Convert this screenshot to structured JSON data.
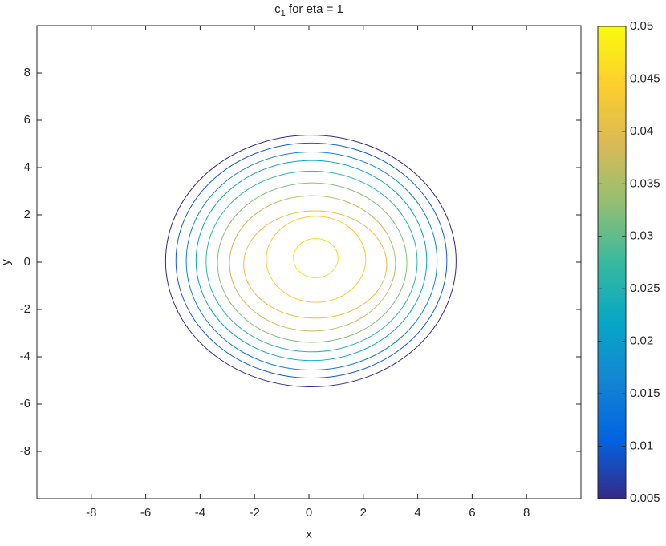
{
  "chart_data": {
    "type": "contour",
    "title": "c",
    "title_subscript": "1",
    "title_rest": " for eta = 1",
    "x_label": "x",
    "y_label": "y",
    "xlim": [
      -10,
      10
    ],
    "ylim": [
      -10,
      10
    ],
    "xticks": [
      -8,
      -6,
      -4,
      -2,
      0,
      2,
      4,
      6,
      8
    ],
    "yticks": [
      -8,
      -6,
      -4,
      -2,
      0,
      2,
      4,
      6,
      8
    ],
    "colorbar_lim": [
      0.005,
      0.05
    ],
    "colorbar_ticks": [
      0.005,
      0.01,
      0.015,
      0.02,
      0.025,
      0.03,
      0.035,
      0.04,
      0.045,
      0.05
    ],
    "colormap": [
      "#352a87",
      "#0363e1",
      "#1485d4",
      "#06a7c6",
      "#38b99e",
      "#92bf73",
      "#d9ba56",
      "#fcce2e",
      "#f9fb0e"
    ],
    "contours": [
      {
        "level": 0.005,
        "color": "#352a87",
        "cx": 0.07,
        "cy": 0.05,
        "rx": 5.34,
        "ry": 5.32
      },
      {
        "level": 0.01,
        "color": "#0f5cdd",
        "cx": 0.09,
        "cy": 0.07,
        "rx": 4.98,
        "ry": 4.97
      },
      {
        "level": 0.015,
        "color": "#1481d6",
        "cx": 0.1,
        "cy": 0.05,
        "rx": 4.61,
        "ry": 4.61
      },
      {
        "level": 0.02,
        "color": "#06a4ca",
        "cx": 0.09,
        "cy": 0.07,
        "rx": 4.24,
        "ry": 4.23
      },
      {
        "level": 0.025,
        "color": "#2eb7a4",
        "cx": 0.1,
        "cy": 0.03,
        "rx": 3.88,
        "ry": 3.82
      },
      {
        "level": 0.03,
        "color": "#87bf77",
        "cx": 0.12,
        "cy": -0.02,
        "rx": 3.48,
        "ry": 3.37
      },
      {
        "level": 0.035,
        "color": "#c6bb5f",
        "cx": 0.13,
        "cy": -0.05,
        "rx": 3.05,
        "ry": 2.86
      },
      {
        "level": 0.04,
        "color": "#f0bb40",
        "cx": 0.23,
        "cy": -0.1,
        "rx": 2.63,
        "ry": 2.27
      },
      {
        "level": 0.045,
        "color": "#fcc72f",
        "cx": 0.26,
        "cy": 0.12,
        "rx": 1.83,
        "ry": 1.82
      },
      {
        "level": 0.05,
        "color": "#f2e11b",
        "cx": 0.25,
        "cy": 0.17,
        "rx": 0.82,
        "ry": 0.83
      }
    ]
  }
}
